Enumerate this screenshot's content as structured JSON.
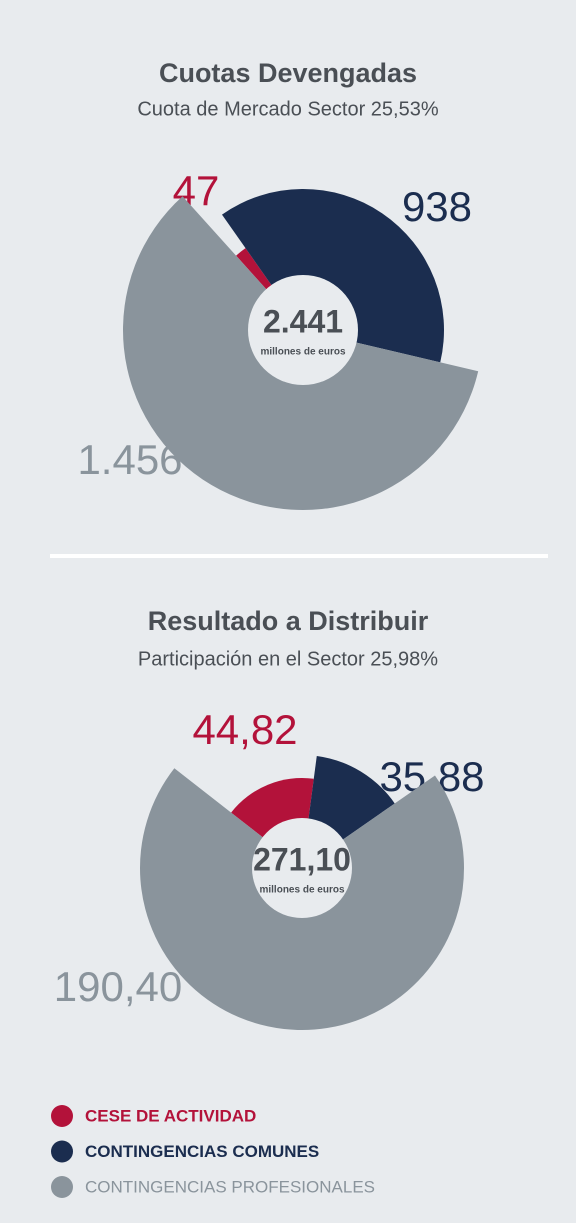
{
  "chart_data": [
    {
      "type": "pie",
      "title": "Cuotas Devengadas",
      "subtitle": "Cuota de Mercado Sector 25,53%",
      "values": [
        47,
        938,
        1456
      ],
      "value_labels": [
        "47",
        "938",
        "1.456"
      ],
      "center_label": "2.441",
      "center_note": "millones de euros"
    },
    {
      "type": "pie",
      "title": "Resultado a Distribuir",
      "subtitle": "Participación en el Sector 25,98%",
      "values": [
        44.82,
        35.88,
        190.4
      ],
      "value_labels": [
        "44,82",
        "35,88",
        "190,40"
      ],
      "center_label": "271,10",
      "center_note": "millones de euros"
    }
  ],
  "legend": [
    "CESE DE ACTIVIDAD",
    "CONTINGENCIAS COMUNES",
    "CONTINGENCIAS PROFESIONALES"
  ],
  "colors": [
    "#b3123a",
    "#1b2d4f",
    "#8a949c"
  ]
}
